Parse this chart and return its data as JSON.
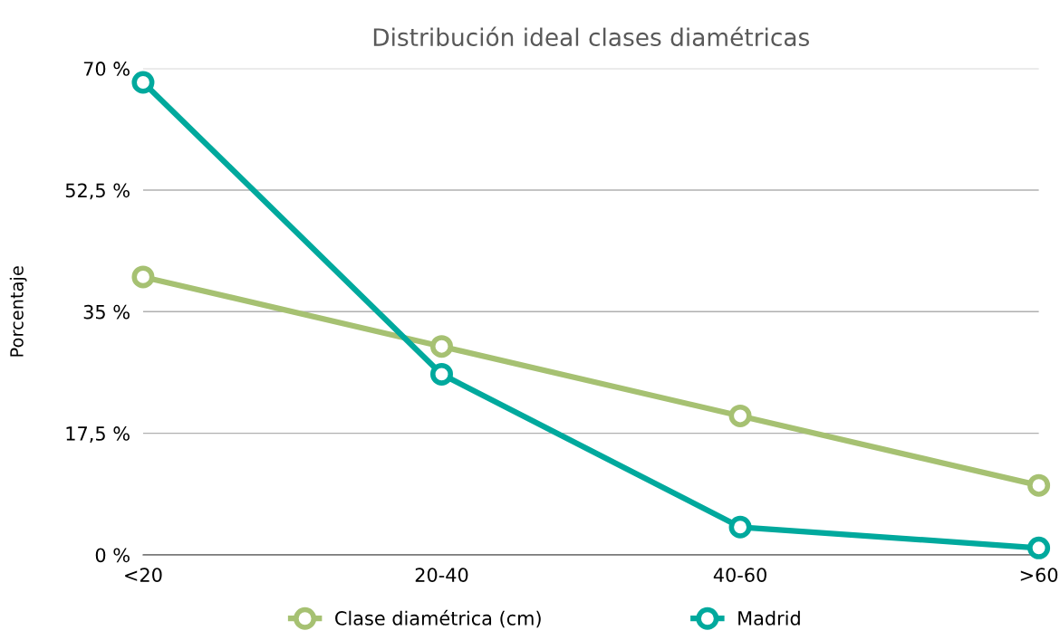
{
  "chart_data": {
    "type": "line",
    "title": "Distribución ideal clases diamétricas",
    "ylabel": "Porcentaje",
    "categories": [
      "<20",
      "20-40",
      "40-60",
      ">60"
    ],
    "series": [
      {
        "name": "Clase diamétrica (cm)",
        "color": "#a6c172",
        "values": [
          40,
          30,
          20,
          10
        ]
      },
      {
        "name": "Madrid",
        "color": "#00a99d",
        "values": [
          68,
          26,
          4,
          1
        ]
      }
    ],
    "ylim": [
      0,
      70
    ],
    "yticks": [
      {
        "value": 0,
        "label": "0 %"
      },
      {
        "value": 17.5,
        "label": "17,5 %"
      },
      {
        "value": 35,
        "label": "35 %"
      },
      {
        "value": 52.5,
        "label": "52,5 %"
      },
      {
        "value": 70,
        "label": "70 %"
      }
    ],
    "grid": "y",
    "legend": "bottom",
    "marker": "circle",
    "line_style": "solid"
  }
}
